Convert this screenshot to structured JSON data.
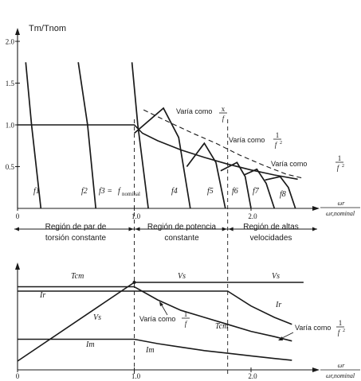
{
  "chart_data": [
    {
      "type": "line",
      "title": "",
      "ylabel": "Tm/Tnom",
      "xlabel": "ωr / ωr,nominal",
      "xlabel_num": "ωr",
      "xlabel_den": "ωr,nominal",
      "xlim": [
        0,
        2.55
      ],
      "ylim": [
        0,
        2.0
      ],
      "x_ticks": [
        "0",
        "1.0",
        "2.0"
      ],
      "y_ticks": [
        "0.5",
        "1.0",
        "1.5",
        "2.0"
      ],
      "torque_envelope": {
        "x": [
          0,
          1.0,
          1.07,
          1.2,
          1.4,
          1.6,
          1.8,
          2.0,
          2.2,
          2.4
        ],
        "y": [
          1.0,
          1.0,
          0.9,
          0.81,
          0.7,
          0.61,
          0.53,
          0.46,
          0.4,
          0.35
        ]
      },
      "max_torque_1_over_f": {
        "x": [
          1.08,
          1.3,
          1.5,
          1.7,
          1.9,
          2.1,
          2.3,
          2.45
        ],
        "y": [
          1.18,
          1.03,
          0.9,
          0.78,
          0.64,
          0.52,
          0.41,
          0.36
        ]
      },
      "curves": [
        {
          "label": "f1",
          "x": [
            0.07,
            0.12,
            0.2
          ],
          "y": [
            1.75,
            1.0,
            0.0
          ],
          "peak": null
        },
        {
          "label": "f2",
          "x": [
            0.52,
            0.6,
            0.67
          ],
          "y": [
            1.75,
            1.0,
            0.0
          ],
          "peak": null
        },
        {
          "label": "f3",
          "x": [
            0.98,
            1.03,
            1.12
          ],
          "y": [
            1.75,
            1.0,
            0.0
          ],
          "peak": null
        },
        {
          "label": "f4",
          "x": [
            1.0,
            1.25,
            1.38,
            1.48
          ],
          "y": [
            0.9,
            1.2,
            0.85,
            0.0
          ],
          "peak": [
            1.22,
            1.21
          ]
        },
        {
          "label": "f5",
          "x": [
            1.45,
            1.6,
            1.7,
            1.78
          ],
          "y": [
            0.5,
            0.78,
            0.55,
            0.0
          ],
          "peak": [
            1.62,
            0.79
          ]
        },
        {
          "label": "f6",
          "x": [
            1.74,
            1.88,
            1.95,
            2.0
          ],
          "y": [
            0.45,
            0.55,
            0.38,
            0.0
          ],
          "peak": [
            1.86,
            0.58
          ]
        },
        {
          "label": "f7",
          "x": [
            1.94,
            2.05,
            2.13,
            2.2
          ],
          "y": [
            0.4,
            0.47,
            0.3,
            0.0
          ],
          "peak": [
            2.05,
            0.49
          ]
        },
        {
          "label": "f8",
          "x": [
            2.12,
            2.25,
            2.32,
            2.38
          ],
          "y": [
            0.34,
            0.38,
            0.25,
            0.0
          ],
          "peak": [
            2.24,
            0.4
          ]
        }
      ],
      "curve_labels": {
        "f1": "f1",
        "f2": "f2",
        "f3_prefix": "f3 =",
        "f3_main": "f",
        "f3_sub": "nominal",
        "f4": "f4",
        "f5": "f5",
        "f6": "f6",
        "f7": "f7",
        "f8": "f8"
      },
      "annotations": {
        "a1_text": "Varía como",
        "a1_num": "x",
        "a1_den": "f",
        "a2_text": "Varía como",
        "a2_num": "1",
        "a2_den": "f",
        "a2_exp": "2",
        "a3_text": "Varía como",
        "a3_num": "1",
        "a3_den": "f",
        "a3_exp": "2"
      },
      "regions": [
        {
          "line1": "Región de par de",
          "line2": "torsión constante"
        },
        {
          "line1": "Región de potencia",
          "line2": "constante"
        },
        {
          "line1": "Región de altas",
          "line2": "velocidades"
        }
      ],
      "grid": false,
      "legend": "none"
    },
    {
      "type": "line",
      "title": "",
      "xlabel": "ωr / ωr,nominal",
      "xlabel_num": "ωr",
      "xlabel_den": "ωr,nominal",
      "xlim": [
        0,
        2.55
      ],
      "x_ticks": [
        "0",
        "1.0",
        "2.0"
      ],
      "series": [
        {
          "name": "Tcm",
          "x": [
            0,
            1.0,
            1.2,
            1.4,
            1.6,
            1.8,
            2.0,
            2.2,
            2.35
          ],
          "y": [
            0.95,
            0.95,
            0.8,
            0.68,
            0.6,
            0.52,
            0.44,
            0.38,
            0.33
          ]
        },
        {
          "name": "Vs",
          "x": [
            0,
            1.0,
            2.45
          ],
          "y": [
            0.1,
            1.0,
            1.0
          ]
        },
        {
          "name": "Ir",
          "x": [
            0,
            1.8,
            2.0,
            2.2,
            2.35
          ],
          "y": [
            0.9,
            0.9,
            0.73,
            0.6,
            0.52
          ]
        },
        {
          "name": "Im",
          "x": [
            0,
            1.0,
            1.2,
            1.4,
            1.6,
            1.8,
            2.0,
            2.2,
            2.35
          ],
          "y": [
            0.35,
            0.35,
            0.3,
            0.26,
            0.22,
            0.19,
            0.16,
            0.13,
            0.11
          ]
        }
      ],
      "series_labels": {
        "Tcm_left": "Tcm",
        "Vs_mid": "Vs",
        "Vs_right": "Vs",
        "Ir_left": "Ir",
        "Vs_diag": "Vs",
        "Tcm_mid": "Tcm",
        "Ir_right": "Ir",
        "Im_left": "Im",
        "Im_mid": "Im"
      },
      "annotations": {
        "b1_text": "Varía como",
        "b1_num": "1",
        "b1_den": "f",
        "b2_text": "Varía como",
        "b2_num": "1",
        "b2_den": "f",
        "b2_exp": "2"
      },
      "grid": false,
      "legend": "none"
    }
  ],
  "colors": {
    "ink": "#1a1a1a",
    "paper": "#ffffff"
  }
}
